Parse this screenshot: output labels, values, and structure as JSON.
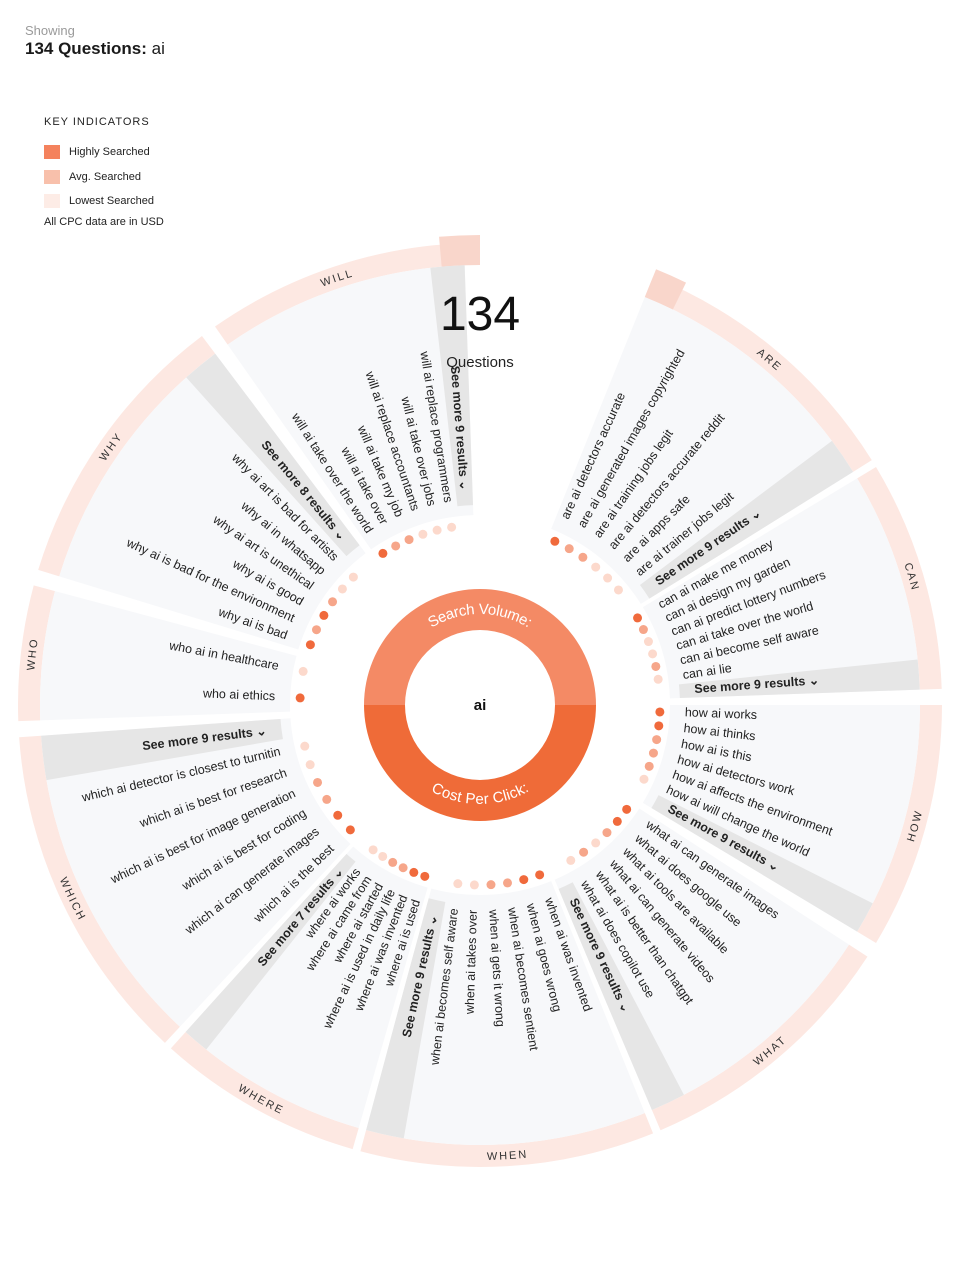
{
  "header": {
    "showing_label": "Showing",
    "count_label": "134 Questions:",
    "keyword": "ai"
  },
  "legend": {
    "title": "KEY INDICATORS",
    "items": [
      {
        "label": "Highly Searched",
        "color": "#f4825d"
      },
      {
        "label": "Avg. Searched",
        "color": "#f8c0ab"
      },
      {
        "label": "Lowest Searched",
        "color": "#fdecE6"
      }
    ],
    "note": "All CPC data are in USD"
  },
  "center": {
    "total": "134",
    "total_label": "Questions",
    "keyword": "ai",
    "search_volume_label": "Search Volume:",
    "cpc_label": "Cost Per Click:"
  },
  "colors": {
    "accent": "#f06a3c",
    "search_volume": "#f48a65",
    "cost_per_click": "#ef6b38",
    "ring": "#fde8e2",
    "panel": "#f7f8fa",
    "see_more_band": "#e6e6e6",
    "dot_high": "#f06a3c",
    "dot_mid": "#f6a68a",
    "dot_low": "#fcd9cc"
  },
  "groups": [
    {
      "name": "ARE",
      "see_more": "See more 9 results",
      "questions": [
        "are ai detectors accurate",
        "are ai generated images copyrighted",
        "are ai training jobs legit",
        "are ai detectors accurate reddit",
        "are ai apps safe",
        "are ai trainer jobs legit"
      ]
    },
    {
      "name": "CAN",
      "see_more": "See more 9 results",
      "questions": [
        "can ai make me money",
        "can ai design my garden",
        "can ai predict lottery numbers",
        "can ai take over the world",
        "can ai become self aware",
        "can ai lie"
      ]
    },
    {
      "name": "HOW",
      "see_more": "See more 9 results",
      "questions": [
        "how ai works",
        "how ai thinks",
        "how ai is this",
        "how ai detectors work",
        "how ai affects the environment",
        "how ai will change the world"
      ]
    },
    {
      "name": "WHAT",
      "see_more": "See more 9 results",
      "questions": [
        "what ai can generate images",
        "what ai does google use",
        "what ai tools are available",
        "what ai can generate videos",
        "what ai is better than chatgpt",
        "what ai does copilot use"
      ]
    },
    {
      "name": "WHEN",
      "see_more": "See more 9 results",
      "questions": [
        "when ai was invented",
        "when ai goes wrong",
        "when ai becomes sentient",
        "when ai gets it wrong",
        "when ai takes over",
        "when ai becomes self aware"
      ]
    },
    {
      "name": "WHERE",
      "see_more": "See more 7 results",
      "questions": [
        "where ai is used",
        "where ai was invented",
        "where ai is used in daily life",
        "where ai started",
        "where ai came from",
        "where ai works"
      ]
    },
    {
      "name": "WHICH",
      "see_more": "See more 9 results",
      "questions": [
        "which ai is the best",
        "which ai can generate images",
        "which ai is best for coding",
        "which ai is best for image generation",
        "which ai is best for research",
        "which ai detector is closest to turnitin"
      ]
    },
    {
      "name": "WHO",
      "see_more": "",
      "questions": [
        "who ai ethics",
        "who ai in healthcare"
      ]
    },
    {
      "name": "WHY",
      "see_more": "See more 8 results",
      "questions": [
        "why ai is bad",
        "why ai is bad for the environment",
        "why ai is good",
        "why ai art is unethical",
        "why ai in whatsapp",
        "why ai art is bad for artists"
      ]
    },
    {
      "name": "WILL",
      "see_more": "See more 9 results",
      "questions": [
        "will ai take over the world",
        "will ai take over",
        "will ai take my job",
        "will ai replace accountants",
        "will ai take over jobs",
        "will ai replace programmers"
      ]
    }
  ],
  "dot_levels": {
    "ARE": [
      3,
      2,
      2,
      1,
      1,
      1
    ],
    "CAN": [
      3,
      2,
      1,
      1,
      2,
      1
    ],
    "HOW": [
      3,
      3,
      2,
      2,
      2,
      1
    ],
    "WHAT": [
      3,
      3,
      2,
      1,
      2,
      1
    ],
    "WHEN": [
      3,
      3,
      2,
      2,
      1,
      1
    ],
    "WHERE": [
      3,
      3,
      2,
      2,
      1,
      1
    ],
    "WHICH": [
      3,
      3,
      2,
      2,
      1,
      1
    ],
    "WHO": [
      3,
      1
    ],
    "WHY": [
      3,
      2,
      3,
      2,
      1,
      1
    ],
    "WILL": [
      3,
      2,
      2,
      1,
      1,
      1
    ]
  }
}
